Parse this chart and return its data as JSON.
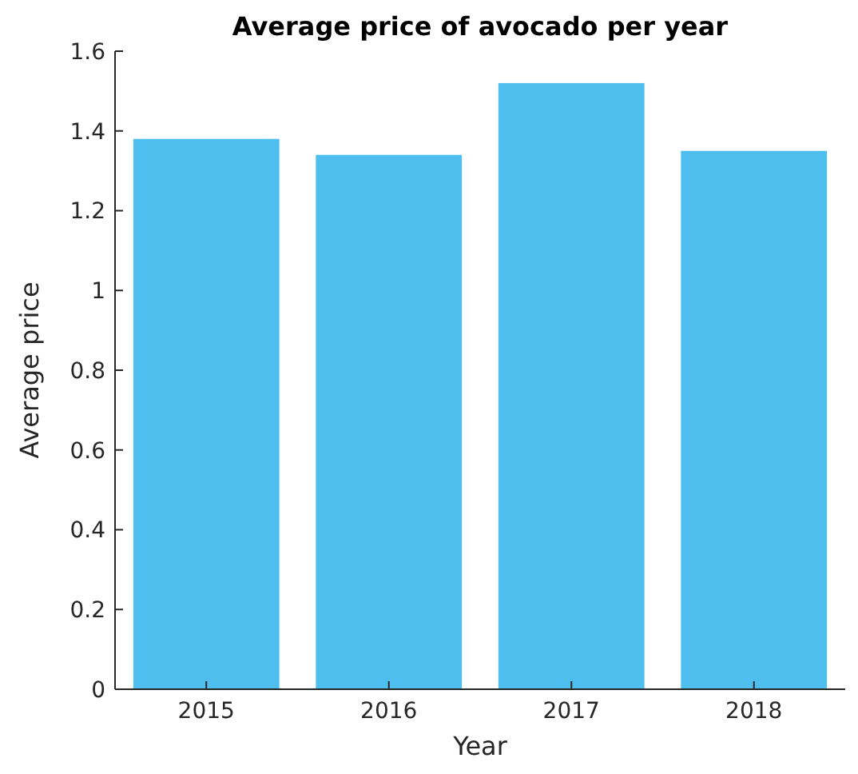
{
  "chart_data": {
    "type": "bar",
    "title": "Average price of avocado per year",
    "xlabel": "Year",
    "ylabel": "Average price",
    "categories": [
      "2015",
      "2016",
      "2017",
      "2018"
    ],
    "values": [
      1.38,
      1.34,
      1.52,
      1.35
    ],
    "color": "#4dbeee",
    "ylim": [
      0,
      1.6
    ],
    "yticks": [
      0,
      0.2,
      0.4,
      0.6,
      0.8,
      1,
      1.2,
      1.4,
      1.6
    ],
    "grid": false
  }
}
